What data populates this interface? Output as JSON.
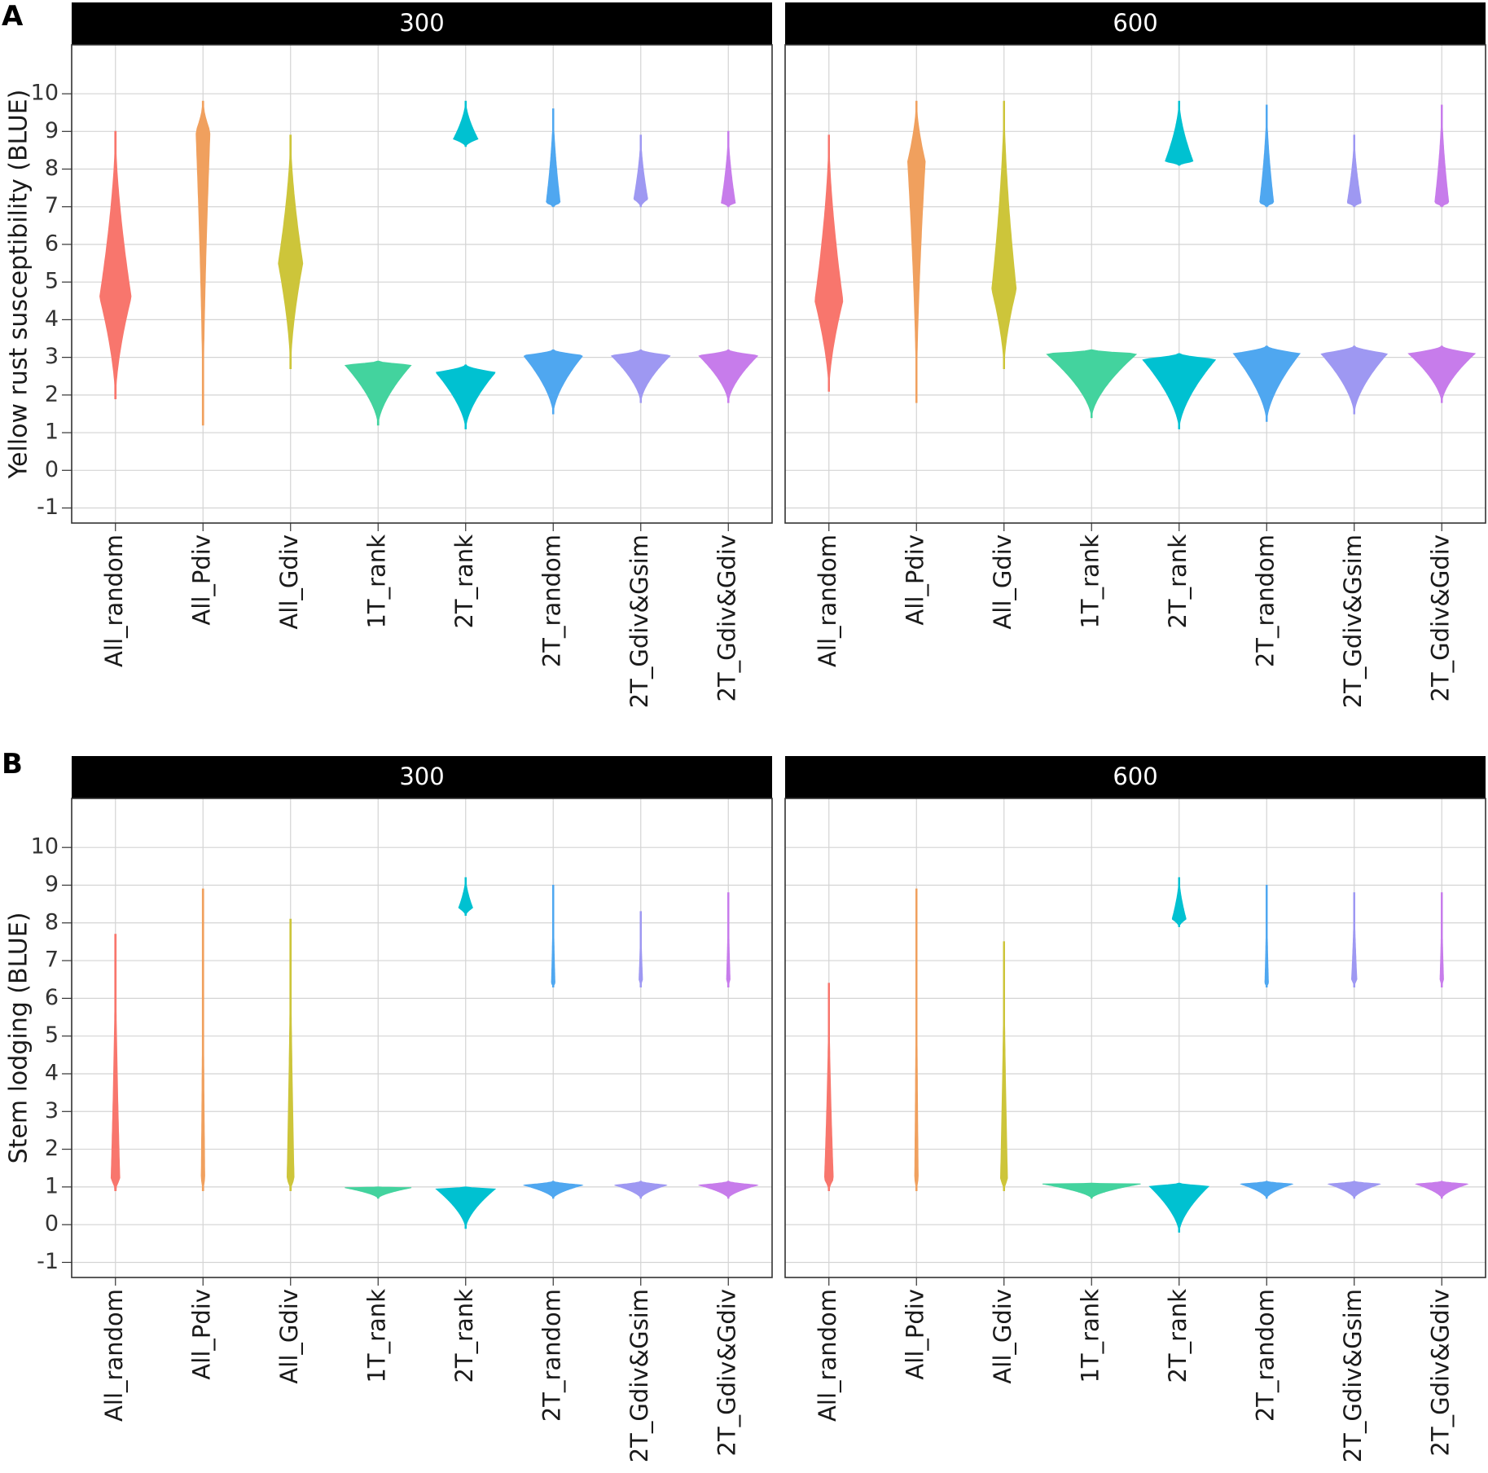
{
  "figure": {
    "rows": [
      {
        "letter": "A",
        "ylabel": "Yellow rust susceptibility (BLUE)",
        "ylim": [
          -1.4,
          11.3
        ],
        "yticks": [
          -1,
          0,
          1,
          2,
          3,
          4,
          5,
          6,
          7,
          8,
          9,
          10
        ],
        "facets": [
          "300",
          "600"
        ]
      },
      {
        "letter": "B",
        "ylabel": "Stem lodging (BLUE)",
        "ylim": [
          -1.4,
          11.3
        ],
        "yticks": [
          -1,
          0,
          1,
          2,
          3,
          4,
          5,
          6,
          7,
          8,
          9,
          10
        ],
        "facets": [
          "300",
          "600"
        ]
      }
    ]
  },
  "chart_data": [
    {
      "type": "violin",
      "title": "A",
      "ylabel": "Yellow rust susceptibility (BLUE)",
      "ylim": [
        -1.4,
        11.3
      ],
      "categories": [
        "All_random",
        "All_Pdiv",
        "All_Gdiv",
        "1T_rank",
        "2T_rank",
        "2T_random",
        "2T_Gdiv&Gsim",
        "2T_Gdiv&Gdiv"
      ],
      "colors": [
        "#F8766D",
        "#F0A05E",
        "#CDC53A",
        "#43D39E",
        "#00C1D1",
        "#4FA7F0",
        "#9E98F2",
        "#C77CEB"
      ],
      "facets": [
        {
          "label": "300",
          "series": [
            {
              "name": "All_random",
              "range": [
                1.9,
                9.0
              ],
              "peak": 4.6,
              "width": 0.18,
              "lower": [],
              "upper": []
            },
            {
              "name": "All_Pdiv",
              "range": [
                1.2,
                9.8
              ],
              "peak": 9.0,
              "width": 0.08,
              "lower": [],
              "upper": []
            },
            {
              "name": "All_Gdiv",
              "range": [
                2.7,
                8.9
              ],
              "peak": 5.5,
              "width": 0.14,
              "lower": [],
              "upper": []
            },
            {
              "name": "1T_rank",
              "range": [
                1.2,
                2.9
              ],
              "peak": 2.8,
              "width": 0.38,
              "lower": [],
              "upper": []
            },
            {
              "name": "2T_rank",
              "range": [
                1.1,
                2.8
              ],
              "peak": 2.6,
              "width": 0.34,
              "lower": [],
              "upper": [
                8.6,
                9.8,
                8.8,
                0.14
              ]
            },
            {
              "name": "2T_random",
              "range": [
                1.5,
                3.2
              ],
              "peak": 3.05,
              "width": 0.34,
              "lower": [],
              "upper": [
                7.0,
                9.6,
                7.1,
                0.08
              ]
            },
            {
              "name": "2T_Gdiv&Gsim",
              "range": [
                1.8,
                3.2
              ],
              "peak": 3.05,
              "width": 0.34,
              "lower": [],
              "upper": [
                7.0,
                8.9,
                7.2,
                0.08
              ]
            },
            {
              "name": "2T_Gdiv&Gdiv",
              "range": [
                1.8,
                3.2
              ],
              "peak": 3.05,
              "width": 0.34,
              "lower": [],
              "upper": [
                7.0,
                9.0,
                7.1,
                0.08
              ]
            }
          ]
        },
        {
          "label": "600",
          "series": [
            {
              "name": "All_random",
              "range": [
                2.1,
                8.9
              ],
              "peak": 4.5,
              "width": 0.16,
              "lower": [],
              "upper": []
            },
            {
              "name": "All_Pdiv",
              "range": [
                1.8,
                9.8
              ],
              "peak": 8.2,
              "width": 0.1,
              "lower": [],
              "upper": []
            },
            {
              "name": "All_Gdiv",
              "range": [
                2.7,
                9.8
              ],
              "peak": 4.8,
              "width": 0.14,
              "lower": [],
              "upper": []
            },
            {
              "name": "1T_rank",
              "range": [
                1.4,
                3.2
              ],
              "peak": 3.1,
              "width": 0.52,
              "lower": [],
              "upper": []
            },
            {
              "name": "2T_rank",
              "range": [
                1.1,
                3.1
              ],
              "peak": 2.95,
              "width": 0.42,
              "lower": [],
              "upper": [
                8.1,
                9.8,
                8.2,
                0.16
              ]
            },
            {
              "name": "2T_random",
              "range": [
                1.3,
                3.3
              ],
              "peak": 3.1,
              "width": 0.38,
              "lower": [],
              "upper": [
                7.0,
                9.7,
                7.1,
                0.08
              ]
            },
            {
              "name": "2T_Gdiv&Gsim",
              "range": [
                1.5,
                3.3
              ],
              "peak": 3.1,
              "width": 0.38,
              "lower": [],
              "upper": [
                7.0,
                8.9,
                7.1,
                0.08
              ]
            },
            {
              "name": "2T_Gdiv&Gdiv",
              "range": [
                1.8,
                3.3
              ],
              "peak": 3.1,
              "width": 0.38,
              "lower": [],
              "upper": [
                7.0,
                9.7,
                7.1,
                0.08
              ]
            }
          ]
        }
      ]
    },
    {
      "type": "violin",
      "title": "B",
      "ylabel": "Stem lodging (BLUE)",
      "ylim": [
        -1.4,
        11.3
      ],
      "categories": [
        "All_random",
        "All_Pdiv",
        "All_Gdiv",
        "1T_rank",
        "2T_rank",
        "2T_random",
        "2T_Gdiv&Gsim",
        "2T_Gdiv&Gdiv"
      ],
      "colors": [
        "#F8766D",
        "#F0A05E",
        "#CDC53A",
        "#43D39E",
        "#00C1D1",
        "#4FA7F0",
        "#9E98F2",
        "#C77CEB"
      ],
      "facets": [
        {
          "label": "300",
          "series": [
            {
              "name": "All_random",
              "range": [
                0.9,
                7.7
              ],
              "peak": 1.2,
              "width": 0.05,
              "lower": [],
              "upper": []
            },
            {
              "name": "All_Pdiv",
              "range": [
                0.9,
                8.9
              ],
              "peak": 1.2,
              "width": 0.02,
              "lower": [],
              "upper": []
            },
            {
              "name": "All_Gdiv",
              "range": [
                0.9,
                8.1
              ],
              "peak": 1.2,
              "width": 0.04,
              "lower": [],
              "upper": []
            },
            {
              "name": "1T_rank",
              "range": [
                0.7,
                1.0
              ],
              "peak": 0.98,
              "width": 0.38,
              "lower": [],
              "upper": []
            },
            {
              "name": "2T_rank",
              "range": [
                -0.1,
                1.0
              ],
              "peak": 0.95,
              "width": 0.34,
              "lower": [],
              "upper": [
                8.2,
                9.2,
                8.4,
                0.08
              ]
            },
            {
              "name": "2T_random",
              "range": [
                0.7,
                1.15
              ],
              "peak": 1.05,
              "width": 0.34,
              "lower": [],
              "upper": [
                6.3,
                9.0,
                6.4,
                0.02
              ]
            },
            {
              "name": "2T_Gdiv&Gsim",
              "range": [
                0.7,
                1.15
              ],
              "peak": 1.05,
              "width": 0.3,
              "lower": [],
              "upper": [
                6.3,
                8.3,
                6.5,
                0.02
              ]
            },
            {
              "name": "2T_Gdiv&Gdiv",
              "range": [
                0.7,
                1.15
              ],
              "peak": 1.05,
              "width": 0.34,
              "lower": [],
              "upper": [
                6.3,
                8.8,
                6.5,
                0.02
              ]
            }
          ]
        },
        {
          "label": "600",
          "series": [
            {
              "name": "All_random",
              "range": [
                0.9,
                6.4
              ],
              "peak": 1.2,
              "width": 0.05,
              "lower": [],
              "upper": []
            },
            {
              "name": "All_Pdiv",
              "range": [
                0.9,
                8.9
              ],
              "peak": 1.2,
              "width": 0.02,
              "lower": [],
              "upper": []
            },
            {
              "name": "All_Gdiv",
              "range": [
                0.9,
                7.5
              ],
              "peak": 1.2,
              "width": 0.04,
              "lower": [],
              "upper": []
            },
            {
              "name": "1T_rank",
              "range": [
                0.7,
                1.1
              ],
              "peak": 1.08,
              "width": 0.56,
              "lower": [],
              "upper": []
            },
            {
              "name": "2T_rank",
              "range": [
                -0.2,
                1.1
              ],
              "peak": 1.02,
              "width": 0.34,
              "lower": [],
              "upper": [
                7.9,
                9.2,
                8.1,
                0.08
              ]
            },
            {
              "name": "2T_random",
              "range": [
                0.7,
                1.15
              ],
              "peak": 1.08,
              "width": 0.3,
              "lower": [],
              "upper": [
                6.3,
                9.0,
                6.4,
                0.02
              ]
            },
            {
              "name": "2T_Gdiv&Gsim",
              "range": [
                0.7,
                1.15
              ],
              "peak": 1.08,
              "width": 0.3,
              "lower": [],
              "upper": [
                6.3,
                8.8,
                6.5,
                0.03
              ]
            },
            {
              "name": "2T_Gdiv&Gdiv",
              "range": [
                0.7,
                1.15
              ],
              "peak": 1.08,
              "width": 0.3,
              "lower": [],
              "upper": [
                6.3,
                8.8,
                6.5,
                0.02
              ]
            }
          ]
        }
      ]
    }
  ]
}
